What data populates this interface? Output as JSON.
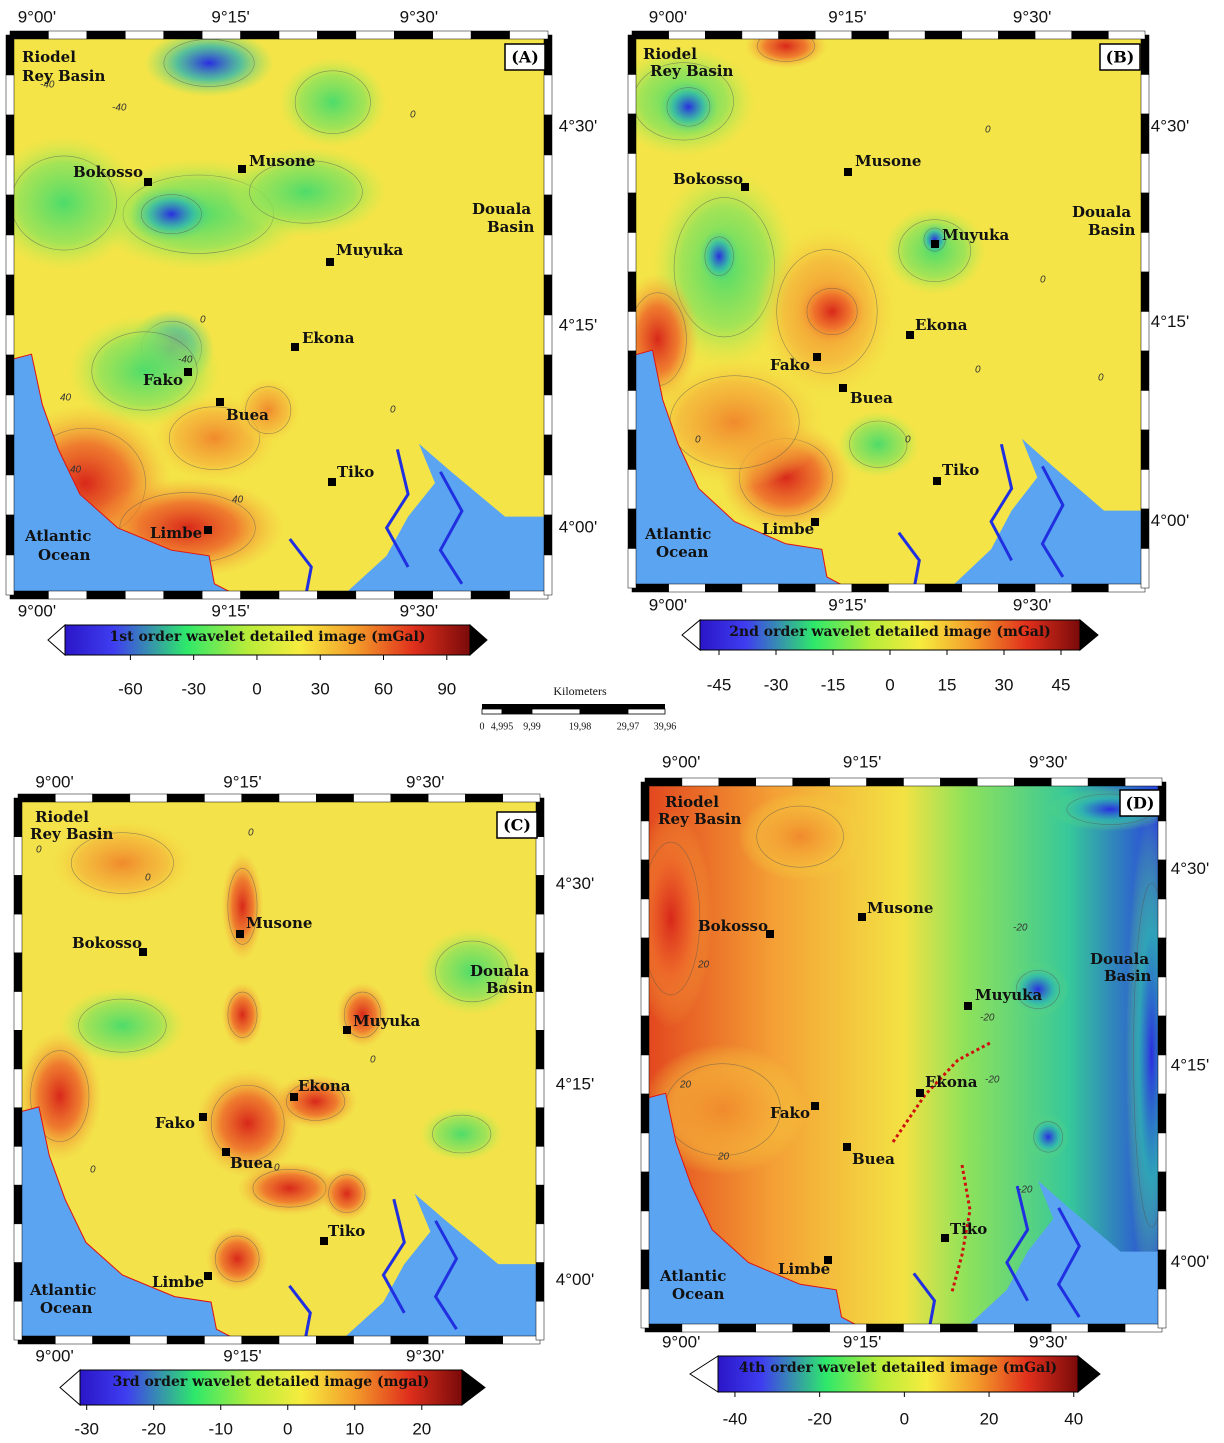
{
  "panels": [
    {
      "label": "(A)",
      "lon_labels": [
        "9°00'",
        "9°15'",
        "9°30'"
      ],
      "lat_labels": [
        "4°30'",
        "4°15'",
        "4°00'"
      ],
      "places": [
        "Riodel",
        "Rey Basin",
        "Bokosso",
        "Musone",
        "Douala",
        "Basin",
        "Muyuka",
        "Ekona",
        "Fako",
        "Buea",
        "Tiko",
        "Atlantic",
        "Ocean",
        "Limbe"
      ],
      "contour_labels": [
        "-40",
        "-40",
        "0",
        "-40",
        "40",
        "40",
        "0",
        "40",
        "0"
      ],
      "colorbar": {
        "title": "1st order wavelet detailed image (mGal)",
        "clim": [
          -91,
          101
        ],
        "ticks": [
          -60,
          -30,
          0,
          30,
          60,
          90
        ]
      }
    },
    {
      "label": "(B)",
      "lon_labels": [
        "9°00'",
        "9°15'",
        "9°30'"
      ],
      "lat_labels": [
        "4°30'",
        "4°15'",
        "4°00'"
      ],
      "places": [
        "Riodel",
        "Rey Basin",
        "Musone",
        "Bokosso",
        "Douala",
        "Basin",
        "Muyuka",
        "Ekona",
        "Fako",
        "Buea",
        "Tiko",
        "Atlantic",
        "Ocean",
        "Limbe"
      ],
      "contour_labels": [
        "0",
        "0",
        "0",
        "0",
        "0",
        "0"
      ],
      "colorbar": {
        "title": "2nd order wavelet detailed image (mGal)",
        "clim": [
          -50,
          50
        ],
        "ticks": [
          -45,
          -30,
          -15,
          0,
          15,
          30,
          45
        ]
      }
    },
    {
      "label": "(C)",
      "lon_labels": [
        "9°00'",
        "9°15'",
        "9°30'"
      ],
      "lat_labels": [
        "4°30'",
        "4°15'",
        "4°00'"
      ],
      "places": [
        "Riodel",
        "Rey Basin",
        "Musone",
        "Bokosso",
        "Douala",
        "Basin",
        "Muyuka",
        "Ekona",
        "Fako",
        "Buea",
        "Tiko",
        "Atlantic",
        "Ocean",
        "Limbe"
      ],
      "contour_labels": [
        "0",
        "0",
        "0",
        "0",
        "0",
        "0"
      ],
      "colorbar": {
        "title": "3rd order wavelet detailed image (mgal)",
        "clim": [
          -31,
          26
        ],
        "ticks": [
          -30,
          -20,
          -10,
          0,
          10,
          20
        ]
      }
    },
    {
      "label": "(D)",
      "lon_labels": [
        "9°00'",
        "9°15'",
        "9°30'"
      ],
      "lat_labels": [
        "4°30'",
        "4°15'",
        "4°00'"
      ],
      "places": [
        "Riodel",
        "Rey Basin",
        "Musone",
        "Bokosso",
        "Douala",
        "Basin",
        "Muyuka",
        "Ekona",
        "Fako",
        "Buea",
        "Tiko",
        "Atlantic",
        "Ocean",
        "Limbe"
      ],
      "contour_labels": [
        "20",
        "20",
        "20",
        "-20",
        "-20",
        "-20",
        "-20"
      ],
      "colorbar": {
        "title": "4th order wavelet detailed image (mGal)",
        "clim": [
          -44,
          41
        ],
        "ticks": [
          -40,
          -20,
          0,
          20,
          40
        ]
      }
    }
  ],
  "scale_bar": {
    "title": "Kilometers",
    "labels": [
      "0",
      "4,995",
      "9,99",
      "19,98",
      "29,97",
      "39,96"
    ]
  }
}
